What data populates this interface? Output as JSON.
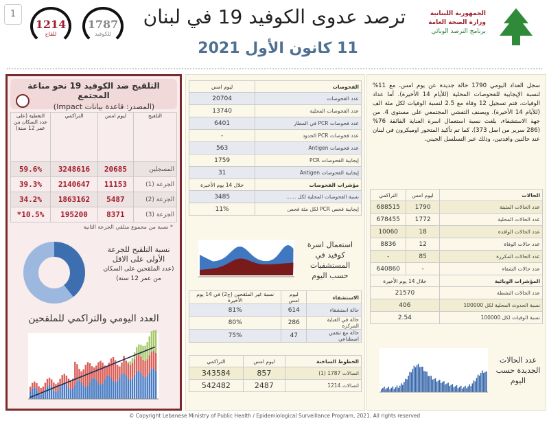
{
  "page_number": "1",
  "header": {
    "title": "ترصد عدوى الكوفيد 19 في لبنان",
    "date": "11 كانون الأول 2021",
    "org_lines": [
      "الجمهورية اللبنانية",
      "وزارة الصحة العامة",
      "برنامج الترصد الوبائي"
    ],
    "hotlines": [
      {
        "number": "1214",
        "label": "للقاح",
        "color": "#a01d2a"
      },
      {
        "number": "1787",
        "label": "للكوفيد",
        "color": "#888888"
      }
    ]
  },
  "vaccination": {
    "title": "التلقيح ضد الكوفيد 19  نحو مناعة المجتمع",
    "source": "(المصدر: قاعدة بيانات Impact)",
    "headers": [
      "التلقيح",
      "ليوم امس",
      "التراكمي",
      "التغطية (على عدد السكان من عمر 12 سنة)"
    ],
    "rows": [
      [
        "المسجلين",
        "20685",
        "3248616",
        "59.6%"
      ],
      [
        "الجرعة (1)",
        "11153",
        "2140647",
        "39.3%"
      ],
      [
        "الجرعة (2)",
        "5487",
        "1863162",
        "34.2%"
      ],
      [
        "الجرعة (3)",
        "8371",
        "195200",
        "10.5%*"
      ]
    ],
    "footnote": "* نسبة من مجموع متلقي الجرعة الثانية",
    "donut_caption": [
      "نسبة التلقيح للجرعة",
      "الأولى على الاقل",
      "(عدد الملقحين على السكان",
      "من عمر 12 سنة)"
    ],
    "chart_title": "العدد اليومي والتراكمي للملقحين"
  },
  "tests": {
    "headers": [
      "الفحوصات",
      "ليوم امس"
    ],
    "rows": [
      [
        "عدد الفحوصات",
        "20704"
      ],
      [
        "عدد الفحوصات المحلية",
        "13740"
      ],
      [
        "عدد فحوصات PCR في المطار",
        "6401"
      ],
      [
        "عدد فحوصات PCR الحدود",
        "-"
      ],
      [
        "عدد فحوصات Antigen",
        "563"
      ],
      [
        "إيجابية الفحوصات PCR",
        "1759"
      ],
      [
        "إيجابية الفحوصات Antigen",
        "31"
      ]
    ],
    "ind_headers": [
      "مؤشرات الفحوصات",
      "خلال 14 يوم الأخيرة"
    ],
    "ind_rows": [
      [
        "نسبة الفحوصات المحلية لكل ......",
        "3485"
      ],
      [
        "إيجابية فحص PCR لكل مئة فحص",
        "11%"
      ]
    ]
  },
  "beds_caption": [
    "استعمال اسرة",
    "كوفيد في",
    "المستشفيات",
    "حسب اليوم"
  ],
  "hospital": {
    "headers": [
      "الاستشفاء",
      "ليوم امس",
      "نسبة غير الملقحين (ج2) في 14 يوم الأخيرة"
    ],
    "rows": [
      [
        "حالة استشفاء",
        "614",
        "81%"
      ],
      [
        "حالة في العناية المركزة",
        "286",
        "80%"
      ],
      [
        "حالة مع تنفس اصطناعي",
        "47",
        "75%"
      ]
    ]
  },
  "hotline_stats": {
    "headers": [
      "الخطوط الساخنة",
      "ليوم امس",
      "التراكمي"
    ],
    "rows": [
      [
        "اتصالات 1787 (1)",
        "857",
        "343584"
      ],
      [
        "اتصالات 1214",
        "2487",
        "542482"
      ]
    ]
  },
  "summary": "سجل العداد اليومي 1790 حالة جديدة عن يوم امس، مع 11% لنسبة الإيجابية للفحوصات المحلية (للأيام 14 الأخيرة). أما عداد الوفيات، فتم تسجيل 12 وفاة مع 2.5 لنسبة الوفيات لكل مئة الف (للأيام 14 الأخيرة). ويصنف التفشي المجتمعي على مستوى 4. من جهة الاستشفاء، بلغت نسبة استعمال اسرة العناية الفائقة 76% (286 سرير من اصل 373). كما تم تأكيد المتحور اوميكرون في لبنان عند حالتين وافدتين، وذلك عبر التسلسل الجيني.",
  "cases": {
    "headers": [
      "الحالات",
      "ليوم امس",
      "التراكمي"
    ],
    "rows": [
      [
        "عدد الحالات المثبتة",
        "1790",
        "688515"
      ],
      [
        "عدد الحالات المحلية",
        "1772",
        "678455"
      ],
      [
        "عدد الحالات الوافدة",
        "18",
        "10060"
      ],
      [
        "عدد حالات الوفاة",
        "12",
        "8836"
      ],
      [
        "عدد الحالات المكررة",
        "85",
        "-"
      ],
      [
        "عدد حالات الشفاء",
        "-",
        "640860"
      ]
    ],
    "ind_headers": [
      "المؤشرات الوبائية",
      "خلال 14 يوم الأخيرة"
    ],
    "ind_rows": [
      [
        "عدد الحالات النشطة",
        "21570"
      ],
      [
        "نسبة الحدوث المحلية لكل 100000",
        "406"
      ],
      [
        "نسبة الوفيات لكل 100000",
        "2.54"
      ]
    ]
  },
  "daily_caption": [
    "عدد الحالات",
    "الجديدة حسب",
    "اليوم"
  ],
  "footer": "© Copyright Lebanese Ministry of Public Health / Epidemiological Surveillance Program, 2021. All rights reserved",
  "chart_data": [
    {
      "type": "pie",
      "title": "نسبة التلقيح للجرعة الأولى على الاقل",
      "categories": [
        "dose 1",
        "remaining"
      ],
      "values": [
        39.3,
        60.7
      ]
    }
  ]
}
